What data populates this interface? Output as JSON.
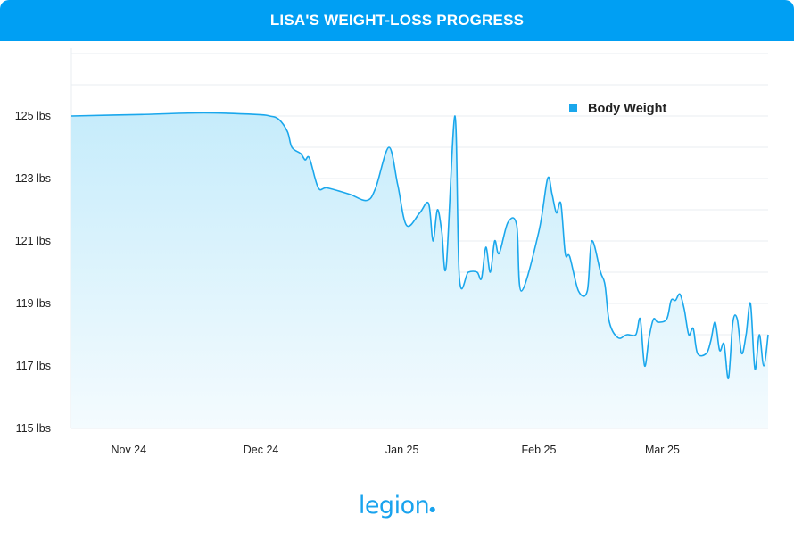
{
  "title": "LISA'S WEIGHT-LOSS PROGRESS",
  "logo": "legion",
  "colors": {
    "header": "#009ff3",
    "line": "#1aa7ec",
    "fill_top": "#c6ecfb",
    "fill_bottom": "#f4fbfe",
    "grid": "#e9edf2"
  },
  "chart_data": {
    "type": "area",
    "title": "LISA'S WEIGHT-LOSS PROGRESS",
    "xlabel": "",
    "ylabel": "",
    "ylim": [
      115,
      127
    ],
    "grid": true,
    "legend_position": "top-right",
    "y_ticks": [
      {
        "value": 125,
        "label": "125 lbs"
      },
      {
        "value": 123,
        "label": "123 lbs"
      },
      {
        "value": 121,
        "label": "121 lbs"
      },
      {
        "value": 119,
        "label": "119 lbs"
      },
      {
        "value": 117,
        "label": "117 lbs"
      },
      {
        "value": 115,
        "label": "115 lbs"
      }
    ],
    "x_ticks": [
      {
        "date": "2024-11-24",
        "label": "Nov 24"
      },
      {
        "date": "2024-12-24",
        "label": "Dec 24"
      },
      {
        "date": "2025-01-25",
        "label": "Jan 25"
      },
      {
        "date": "2025-02-25",
        "label": "Feb 25"
      },
      {
        "date": "2025-03-25",
        "label": "Mar 25"
      }
    ],
    "xlim": [
      "2024-11-11",
      "2025-04-13"
    ],
    "series": [
      {
        "name": "Body Weight",
        "points": [
          [
            "2024-11-11",
            125.0
          ],
          [
            "2024-11-27",
            125.05
          ],
          [
            "2024-12-11",
            125.1
          ],
          [
            "2024-12-23",
            125.05
          ],
          [
            "2024-12-26",
            125.0
          ],
          [
            "2024-12-28",
            124.9
          ],
          [
            "2024-12-30",
            124.5
          ],
          [
            "2024-12-31",
            124.0
          ],
          [
            "2025-01-02",
            123.8
          ],
          [
            "2025-01-03",
            123.6
          ],
          [
            "2025-01-04",
            123.65
          ],
          [
            "2025-01-06",
            122.7
          ],
          [
            "2025-01-08",
            122.7
          ],
          [
            "2025-01-13",
            122.5
          ],
          [
            "2025-01-17",
            122.3
          ],
          [
            "2025-01-19",
            122.7
          ],
          [
            "2025-01-22",
            124.0
          ],
          [
            "2025-01-24",
            122.8
          ],
          [
            "2025-01-26",
            121.5
          ],
          [
            "2025-01-29",
            121.9
          ],
          [
            "2025-01-31",
            122.2
          ],
          [
            "2025-02-01",
            121.0
          ],
          [
            "2025-02-02",
            122.0
          ],
          [
            "2025-02-03",
            121.3
          ],
          [
            "2025-02-04",
            120.2
          ],
          [
            "2025-02-06",
            125.0
          ],
          [
            "2025-02-07",
            119.8
          ],
          [
            "2025-02-09",
            120.0
          ],
          [
            "2025-02-11",
            120.0
          ],
          [
            "2025-02-12",
            119.8
          ],
          [
            "2025-02-13",
            120.8
          ],
          [
            "2025-02-14",
            120.0
          ],
          [
            "2025-02-15",
            121.0
          ],
          [
            "2025-02-16",
            120.6
          ],
          [
            "2025-02-18",
            121.6
          ],
          [
            "2025-02-20",
            121.5
          ],
          [
            "2025-02-21",
            119.4
          ],
          [
            "2025-02-25",
            121.3
          ],
          [
            "2025-02-27",
            123.0
          ],
          [
            "2025-02-28",
            122.5
          ],
          [
            "2025-03-01",
            121.9
          ],
          [
            "2025-03-02",
            122.2
          ],
          [
            "2025-03-03",
            120.6
          ],
          [
            "2025-03-04",
            120.5
          ],
          [
            "2025-03-06",
            119.4
          ],
          [
            "2025-03-08",
            119.4
          ],
          [
            "2025-03-09",
            121.0
          ],
          [
            "2025-03-11",
            120.0
          ],
          [
            "2025-03-12",
            119.6
          ],
          [
            "2025-03-13",
            118.4
          ],
          [
            "2025-03-15",
            117.9
          ],
          [
            "2025-03-17",
            118.0
          ],
          [
            "2025-03-19",
            118.0
          ],
          [
            "2025-03-20",
            118.5
          ],
          [
            "2025-03-21",
            117.0
          ],
          [
            "2025-03-22",
            117.9
          ],
          [
            "2025-03-23",
            118.5
          ],
          [
            "2025-03-24",
            118.4
          ],
          [
            "2025-03-26",
            118.5
          ],
          [
            "2025-03-27",
            119.1
          ],
          [
            "2025-03-28",
            119.1
          ],
          [
            "2025-03-29",
            119.3
          ],
          [
            "2025-03-30",
            118.8
          ],
          [
            "2025-03-31",
            118.0
          ],
          [
            "2025-04-01",
            118.2
          ],
          [
            "2025-04-02",
            117.4
          ],
          [
            "2025-04-04",
            117.4
          ],
          [
            "2025-04-05",
            117.8
          ],
          [
            "2025-04-06",
            118.4
          ],
          [
            "2025-04-07",
            117.5
          ],
          [
            "2025-04-08",
            117.7
          ],
          [
            "2025-04-09",
            116.6
          ],
          [
            "2025-04-10",
            118.4
          ],
          [
            "2025-04-11",
            118.5
          ],
          [
            "2025-04-12",
            117.4
          ],
          [
            "2025-04-13",
            118.0
          ],
          [
            "2025-04-14",
            119.0
          ],
          [
            "2025-04-15",
            116.9
          ],
          [
            "2025-04-16",
            118.0
          ],
          [
            "2025-04-17",
            117.0
          ],
          [
            "2025-04-18",
            118.0
          ]
        ]
      }
    ]
  }
}
